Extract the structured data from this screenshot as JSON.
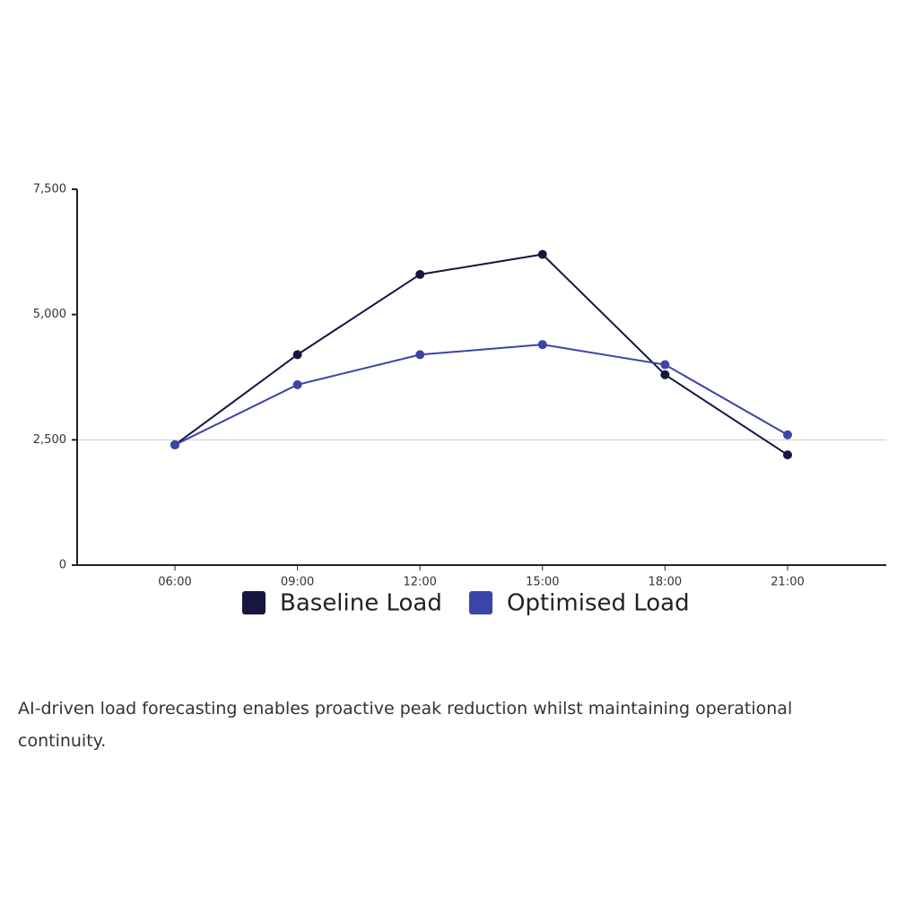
{
  "chart_data": {
    "type": "line",
    "categories": [
      "06:00",
      "09:00",
      "12:00",
      "15:00",
      "18:00",
      "21:00"
    ],
    "series": [
      {
        "name": "Baseline Load",
        "color": "#16163f",
        "values": [
          2400,
          4200,
          5800,
          6200,
          3800,
          2200
        ]
      },
      {
        "name": "Optimised Load",
        "color": "#3b44a8",
        "values": [
          2400,
          3600,
          4200,
          4400,
          4000,
          2600
        ]
      }
    ],
    "ylim": [
      0,
      7500
    ],
    "yticks": [
      0,
      {
        "value": 2500,
        "label": "2,500"
      },
      {
        "value": 5000,
        "label": "5,000"
      },
      {
        "value": 7500,
        "label": "7,500"
      }
    ],
    "hlines": [
      2500
    ],
    "legend": "bottom",
    "caption": "AI-driven load forecasting enables proactive peak reduction whilst maintaining operational continuity."
  }
}
